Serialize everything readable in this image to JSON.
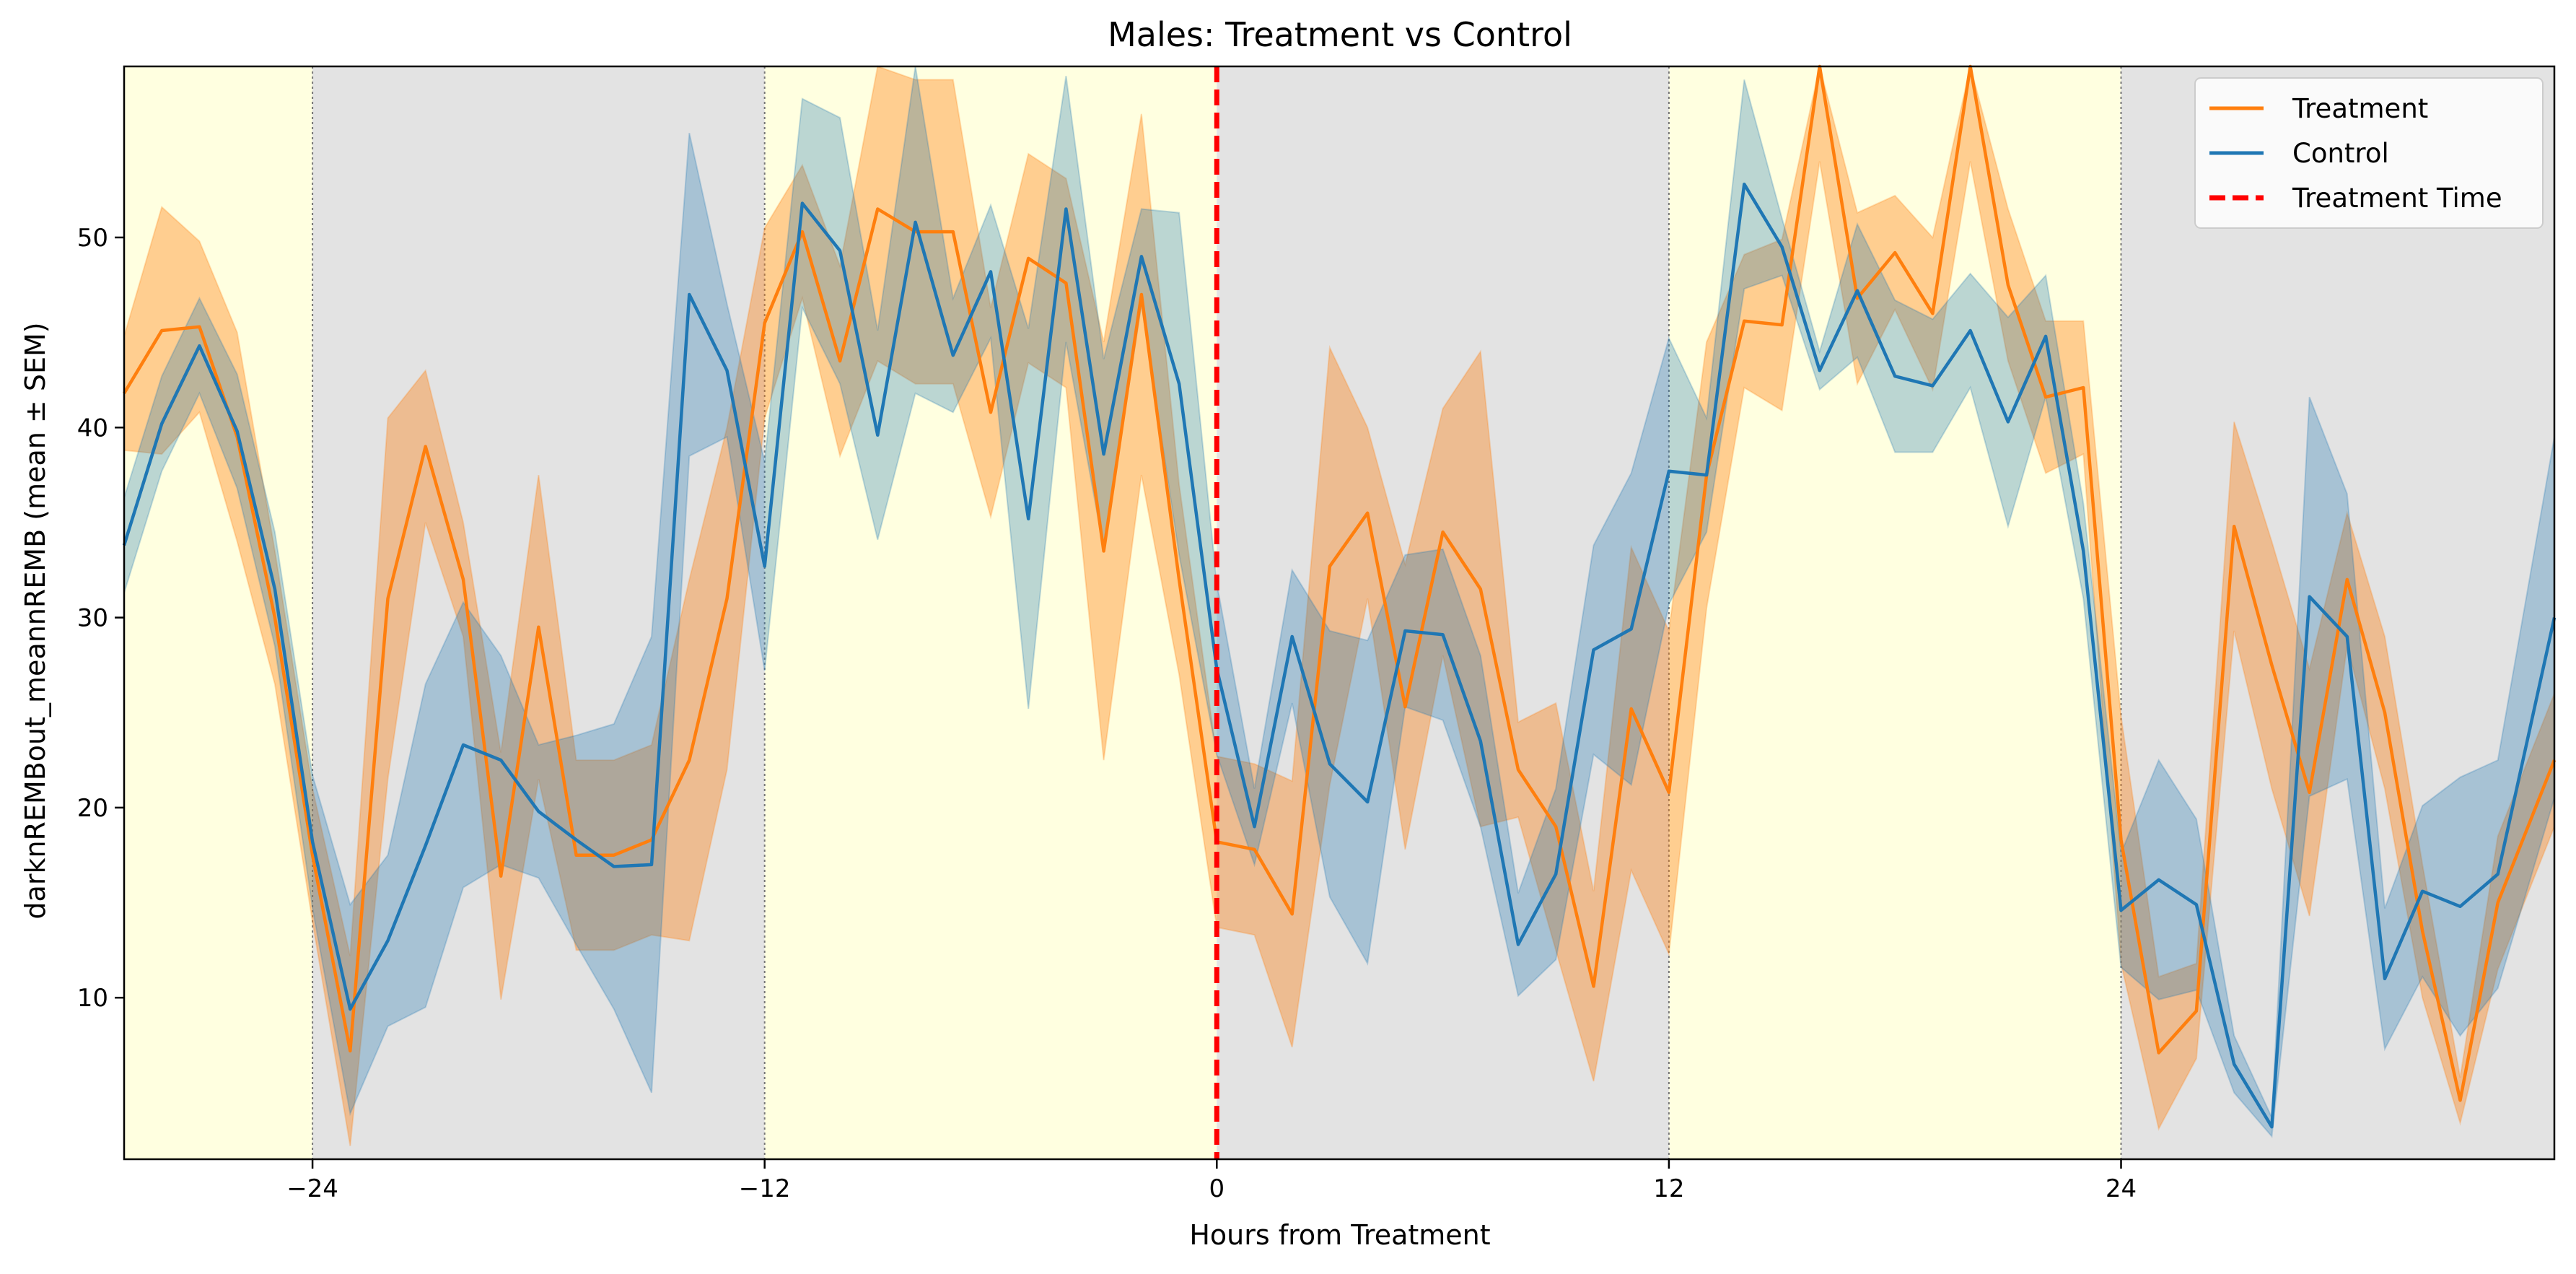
{
  "chart_data": {
    "type": "line",
    "title": "Males: Treatment vs Control",
    "xlabel": "Hours from Treatment",
    "ylabel": "darknREMBout_meannREMB (mean ± SEM)",
    "xlim": [
      -29,
      35.5
    ],
    "ylim": [
      1.5,
      59
    ],
    "x_ticks": [
      -24,
      -12,
      0,
      12,
      24
    ],
    "x_tick_labels": [
      "−24",
      "−12",
      "0",
      "12",
      "24"
    ],
    "y_ticks": [
      10,
      20,
      30,
      40,
      50
    ],
    "y_tick_labels": [
      "10",
      "20",
      "30",
      "40",
      "50"
    ],
    "grid": false,
    "legend_position": "top-right",
    "background_bands": [
      {
        "from": -29,
        "to": -24,
        "phase": "light",
        "color": "#ffffe0"
      },
      {
        "from": -24,
        "to": -12,
        "phase": "dark",
        "color": "#e3e3e3"
      },
      {
        "from": -12,
        "to": 0,
        "phase": "light",
        "color": "#ffffe0"
      },
      {
        "from": 0,
        "to": 12,
        "phase": "dark",
        "color": "#e3e3e3"
      },
      {
        "from": 12,
        "to": 24,
        "phase": "light",
        "color": "#ffffe0"
      },
      {
        "from": 24,
        "to": 35.5,
        "phase": "dark",
        "color": "#e3e3e3"
      }
    ],
    "phase_boundaries": [
      -24,
      -12,
      12,
      24
    ],
    "treatment_time": 0,
    "series": [
      {
        "name": "Treatment",
        "color": "#ff7f0e",
        "x": [
          -29,
          -28,
          -27,
          -26,
          -25,
          -24,
          -23,
          -22,
          -21,
          -20,
          -19,
          -18,
          -17,
          -16,
          -15,
          -14,
          -13,
          -12,
          -11,
          -10,
          -9,
          -8,
          -7,
          -6,
          -5,
          -4,
          -3,
          -2,
          -1,
          0,
          1,
          2,
          3,
          4,
          5,
          6,
          7,
          8,
          9,
          10,
          11,
          12,
          13,
          14,
          15,
          16,
          17,
          18,
          19,
          20,
          21,
          22,
          23,
          24,
          25,
          26,
          27,
          28,
          29,
          30,
          31,
          32,
          33,
          34,
          35.5
        ],
        "values": [
          41.8,
          45.1,
          45.3,
          39.5,
          30.0,
          17.5,
          7.2,
          31.0,
          39.0,
          32.0,
          16.4,
          29.5,
          17.5,
          17.5,
          18.3,
          22.5,
          31.0,
          45.5,
          50.3,
          43.5,
          51.5,
          50.3,
          50.3,
          40.8,
          48.9,
          47.6,
          33.5,
          47.0,
          32.0,
          18.2,
          17.8,
          14.4,
          32.7,
          35.5,
          25.3,
          34.5,
          31.5,
          22.0,
          19.0,
          10.6,
          25.2,
          20.8,
          37.5,
          45.6,
          45.4,
          59.0,
          46.8,
          49.2,
          46.0,
          59.0,
          47.5,
          41.6,
          42.1,
          18.3,
          7.1,
          9.3,
          34.8,
          27.5,
          20.8,
          32.0,
          25.0,
          13.5,
          4.6,
          15.0,
          22.5
        ],
        "sem": [
          3.0,
          6.5,
          4.5,
          5.5,
          3.5,
          3.5,
          5.0,
          9.5,
          4.0,
          3.0,
          6.5,
          8.0,
          5.0,
          5.0,
          5.0,
          9.5,
          9.0,
          5.0,
          3.5,
          5.0,
          8.0,
          8.0,
          8.0,
          5.5,
          5.5,
          5.5,
          11.0,
          9.5,
          5.0,
          4.5,
          4.5,
          7.0,
          11.5,
          4.5,
          7.5,
          6.5,
          12.5,
          2.5,
          6.5,
          5.0,
          8.5,
          8.5,
          7.0,
          3.5,
          4.5,
          5.0,
          4.5,
          3.0,
          4.0,
          5.0,
          4.0,
          4.0,
          3.5,
          6.5,
          4.0,
          2.5,
          5.5,
          6.5,
          6.5,
          3.5,
          4.0,
          3.5,
          1.2,
          3.5,
          3.5
        ]
      },
      {
        "name": "Control",
        "color": "#1f77b4",
        "x": [
          -29,
          -28,
          -27,
          -26,
          -25,
          -24,
          -23,
          -22,
          -21,
          -20,
          -19,
          -18,
          -17,
          -16,
          -15,
          -14,
          -13,
          -12,
          -11,
          -10,
          -9,
          -8,
          -7,
          -6,
          -5,
          -4,
          -3,
          -2,
          -1,
          0,
          1,
          2,
          3,
          4,
          5,
          6,
          7,
          8,
          9,
          10,
          11,
          12,
          13,
          14,
          15,
          16,
          17,
          18,
          19,
          20,
          21,
          22,
          23,
          24,
          25,
          26,
          27,
          28,
          29,
          30,
          31,
          32,
          33,
          34,
          35.5
        ],
        "values": [
          33.8,
          40.2,
          44.3,
          39.8,
          31.5,
          18.2,
          9.4,
          13.0,
          18.0,
          23.3,
          22.5,
          19.8,
          18.3,
          16.9,
          17.0,
          47.0,
          43.0,
          32.7,
          51.8,
          49.3,
          39.6,
          50.8,
          43.8,
          48.2,
          35.2,
          51.5,
          38.6,
          49.0,
          42.3,
          27.3,
          19.0,
          29.0,
          22.3,
          20.3,
          29.3,
          29.1,
          23.5,
          12.8,
          16.5,
          28.3,
          29.4,
          37.7,
          37.5,
          52.8,
          49.5,
          43.0,
          47.2,
          42.7,
          42.2,
          45.1,
          40.3,
          44.8,
          33.5,
          14.6,
          16.2,
          14.9,
          6.5,
          3.2,
          31.1,
          29.0,
          11.0,
          15.6,
          14.8,
          16.5,
          30.0
        ],
        "sem": [
          2.5,
          2.5,
          2.5,
          3.0,
          3.0,
          3.5,
          5.5,
          4.5,
          8.5,
          7.5,
          5.5,
          3.5,
          5.5,
          7.5,
          12.0,
          8.5,
          3.5,
          5.5,
          5.5,
          7.0,
          5.5,
          9.0,
          3.0,
          3.5,
          10.0,
          7.0,
          5.0,
          2.5,
          9.0,
          4.5,
          2.0,
          3.5,
          7.0,
          8.5,
          4.0,
          4.5,
          4.5,
          2.7,
          4.5,
          5.5,
          8.2,
          7.0,
          3.0,
          5.5,
          1.5,
          1.0,
          3.5,
          4.0,
          3.5,
          3.0,
          5.5,
          3.2,
          2.5,
          3.0,
          6.3,
          4.5,
          1.5,
          0.5,
          10.5,
          7.5,
          3.7,
          4.5,
          6.8,
          6.0,
          9.5
        ]
      }
    ],
    "legend": [
      {
        "label": "Treatment",
        "color": "#ff7f0e",
        "style": "solid"
      },
      {
        "label": "Control",
        "color": "#1f77b4",
        "style": "solid"
      },
      {
        "label": "Treatment Time",
        "color": "#ff0000",
        "style": "dashed"
      }
    ]
  }
}
